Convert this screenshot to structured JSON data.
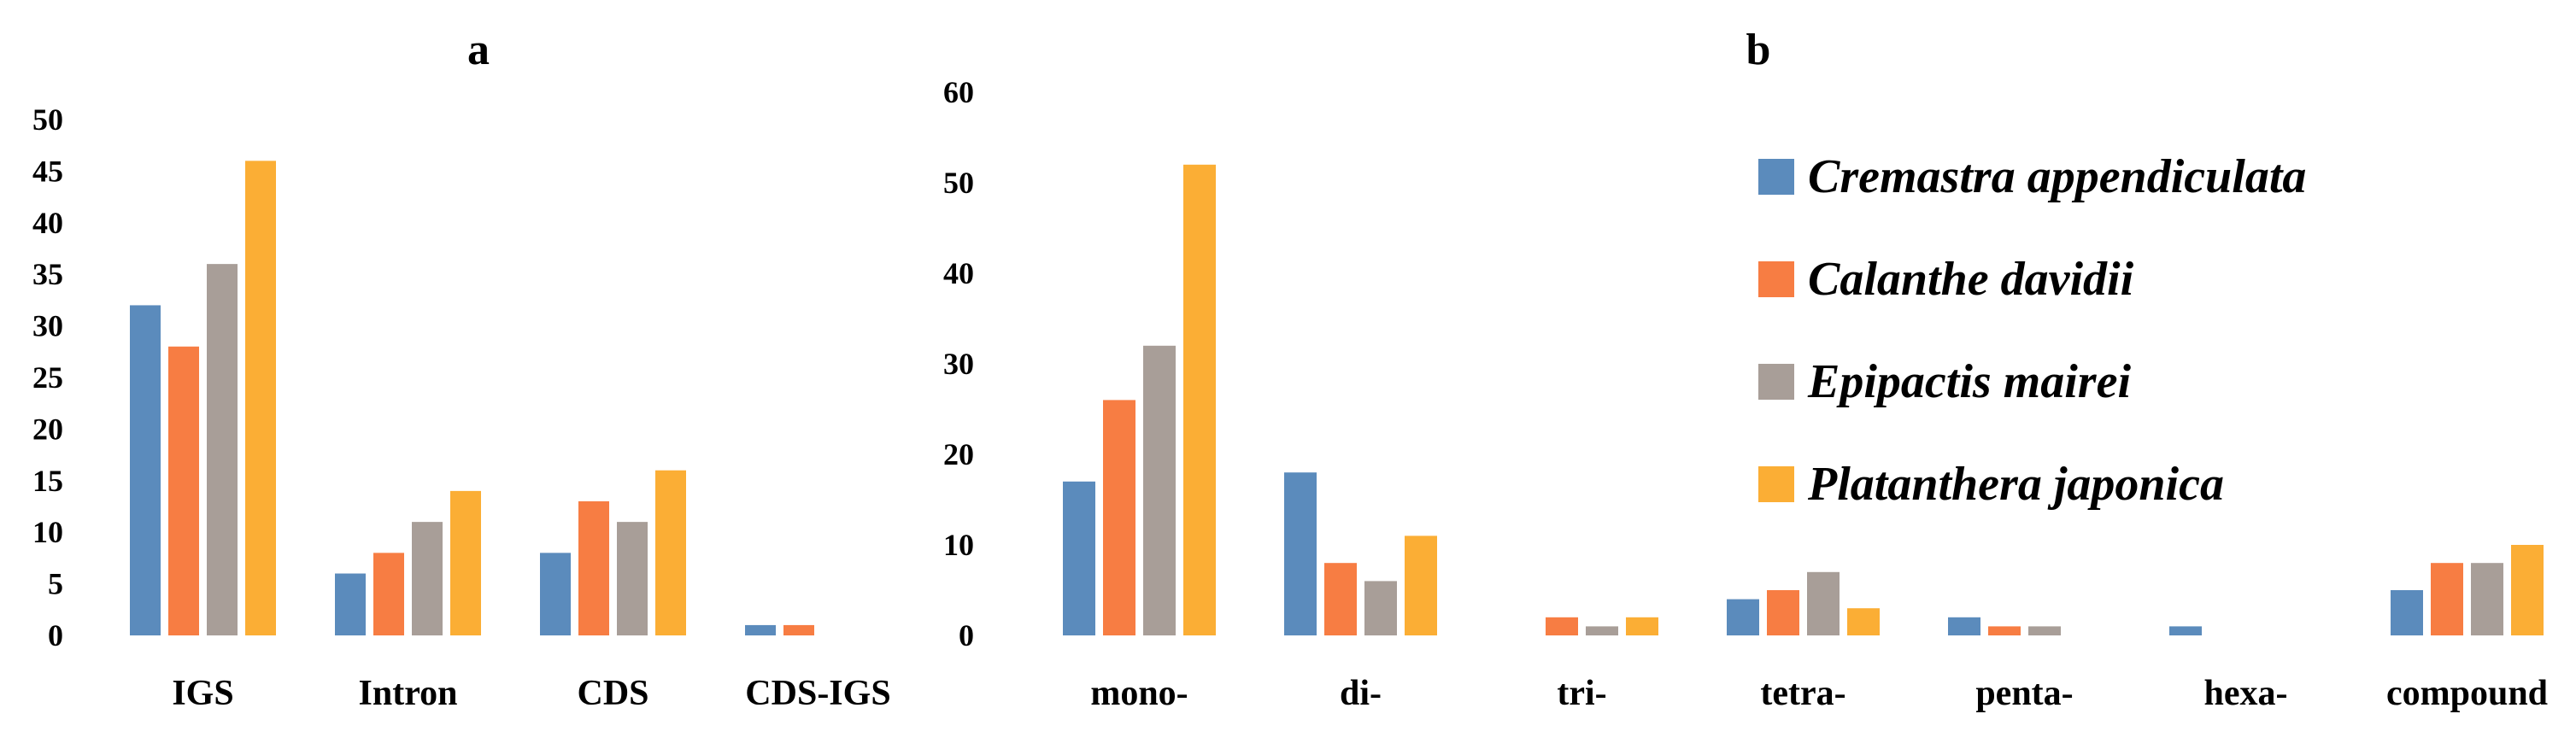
{
  "legend": {
    "placement": "right",
    "entries": [
      {
        "name": "Cremastra appendiculata",
        "color": "#5b8bbc"
      },
      {
        "name": "Calanthe davidii",
        "color": "#f77d43"
      },
      {
        "name": "Epipactis mairei",
        "color": "#a89e98"
      },
      {
        "name": "Platanthera japonica",
        "color": "#fbae35"
      }
    ]
  },
  "chart_data": [
    {
      "type": "bar",
      "title": "a",
      "xlabel": "",
      "ylabel": "",
      "ylim": [
        0,
        50
      ],
      "yticks": [
        "0",
        "5",
        "10",
        "15",
        "20",
        "25",
        "30",
        "35",
        "40",
        "45",
        "50"
      ],
      "grid": false,
      "categories": [
        "IGS",
        "Intron",
        "CDS",
        "CDS-IGS"
      ],
      "series": [
        {
          "name": "Cremastra appendiculata",
          "values": [
            32,
            6,
            8,
            1
          ]
        },
        {
          "name": "Calanthe davidii",
          "values": [
            28,
            8,
            13,
            1
          ]
        },
        {
          "name": "Epipactis mairei",
          "values": [
            36,
            11,
            11,
            0
          ]
        },
        {
          "name": "Platanthera japonica",
          "values": [
            46,
            14,
            16,
            0
          ]
        }
      ]
    },
    {
      "type": "bar",
      "title": "b",
      "xlabel": "",
      "ylabel": "",
      "ylim": [
        0,
        60
      ],
      "yticks": [
        "0",
        "10",
        "20",
        "30",
        "40",
        "50",
        "60"
      ],
      "grid": false,
      "categories": [
        "mono-",
        "di-",
        "tri-",
        "tetra-",
        "penta-",
        "hexa-",
        "compound"
      ],
      "series": [
        {
          "name": "Cremastra appendiculata",
          "values": [
            17,
            18,
            0,
            4,
            2,
            1,
            5
          ]
        },
        {
          "name": "Calanthe davidii",
          "values": [
            26,
            8,
            2,
            5,
            1,
            0,
            8
          ]
        },
        {
          "name": "Epipactis mairei",
          "values": [
            32,
            6,
            1,
            7,
            1,
            0,
            8
          ]
        },
        {
          "name": "Platanthera japonica",
          "values": [
            52,
            11,
            2,
            3,
            0,
            0,
            10
          ]
        }
      ]
    }
  ]
}
